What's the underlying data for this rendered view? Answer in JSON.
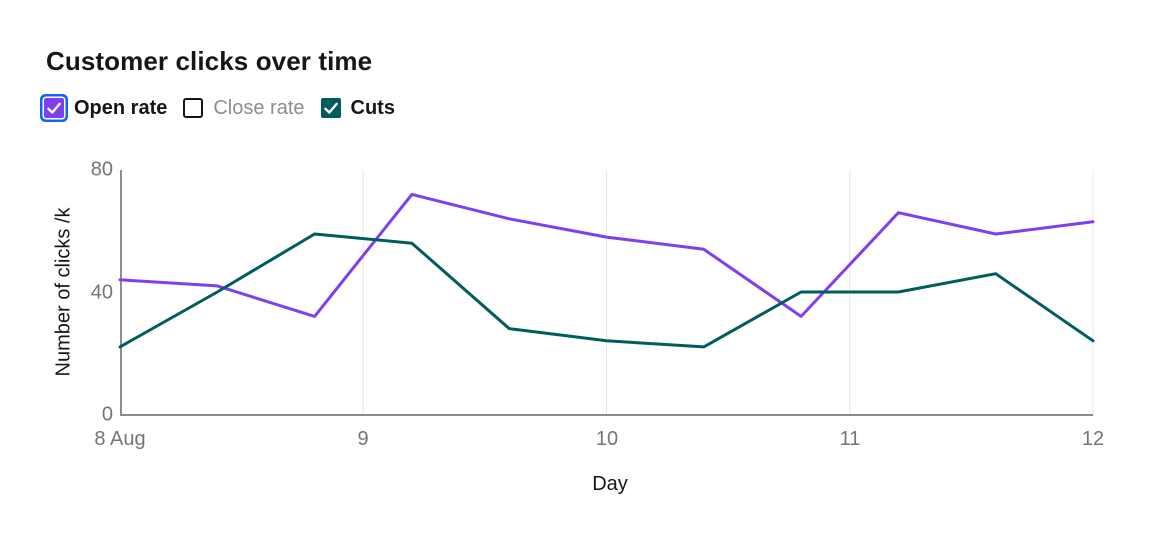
{
  "title": "Customer clicks over time",
  "legend": {
    "items": [
      {
        "label": "Open rate",
        "checked": true,
        "focused": true,
        "checkbox_color": "#7e3ff2",
        "label_style": "bold"
      },
      {
        "label": "Close rate",
        "checked": false,
        "focused": false,
        "checkbox_color": "#ffffff",
        "label_style": "muted"
      },
      {
        "label": "Cuts",
        "checked": true,
        "focused": false,
        "checkbox_color": "#005d5d",
        "label_style": "bold"
      }
    ]
  },
  "colors": {
    "accent_purple": "#7e3ff2",
    "accent_teal": "#005d5d",
    "focus_ring": "#0f62fe",
    "axis_line": "#8d8d8d",
    "grid_line": "#e8e8e8",
    "tick_text": "#757575",
    "text": "#161616",
    "muted_text": "#8d8d8d",
    "background": "#ffffff"
  },
  "chart_data": {
    "type": "line",
    "title": "Customer clicks over time",
    "xlabel": "Day",
    "ylabel": "Number of clicks /k",
    "xlim": [
      8,
      12
    ],
    "ylim": [
      0,
      80
    ],
    "x_tick_values": [
      8,
      9,
      10,
      11,
      12
    ],
    "x_tick_labels": [
      "8 Aug",
      "9",
      "10",
      "11",
      "12"
    ],
    "y_tick_values": [
      0,
      40,
      80
    ],
    "y_tick_labels_top_to_bottom": [
      "80",
      "40",
      "0"
    ],
    "grid": "vertical-only",
    "legend_position": "top-left",
    "x": [
      8,
      8.4,
      8.8,
      9.2,
      9.6,
      10,
      10.4,
      10.8,
      11.2,
      11.6,
      12
    ],
    "series": [
      {
        "name": "Open rate",
        "visible": true,
        "color": "#7e3ff2",
        "values": [
          44,
          42,
          32,
          72,
          64,
          58,
          54,
          32,
          66,
          59,
          63
        ]
      },
      {
        "name": "Close rate",
        "visible": false,
        "color": null,
        "values": []
      },
      {
        "name": "Cuts",
        "visible": true,
        "color": "#005d5d",
        "values": [
          22,
          40,
          59,
          56,
          28,
          24,
          22,
          40,
          40,
          46,
          24
        ]
      }
    ]
  }
}
